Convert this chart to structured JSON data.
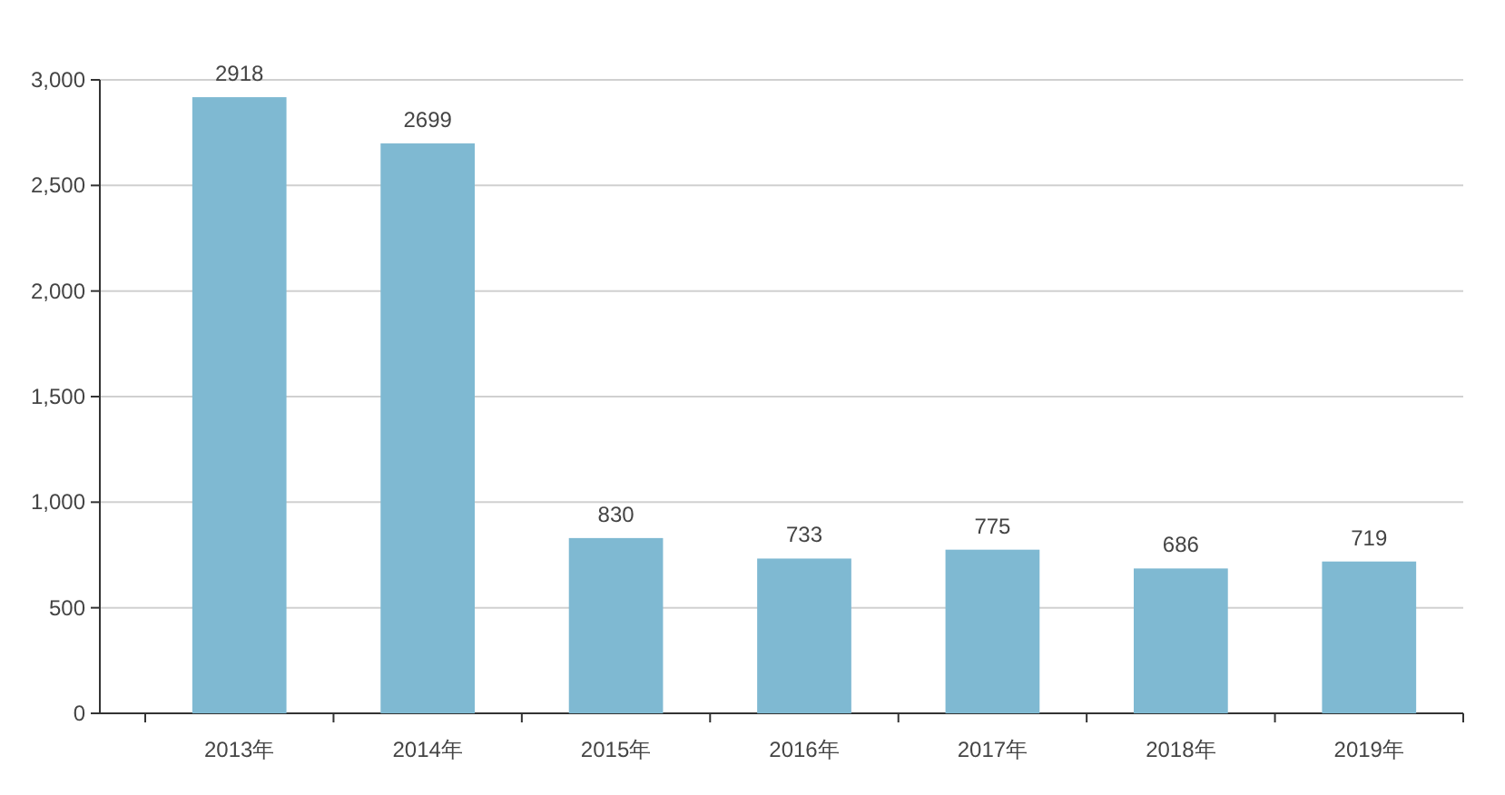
{
  "chart_data": {
    "type": "bar",
    "categories": [
      "2013年",
      "2014年",
      "2015年",
      "2016年",
      "2017年",
      "2018年",
      "2019年"
    ],
    "values": [
      2918,
      2699,
      830,
      733,
      775,
      686,
      719
    ],
    "color": "#7fb9d2",
    "ylim": [
      0,
      3000
    ],
    "yticks": [
      0,
      500,
      {
        "value": 1000,
        "label": "1,000"
      },
      {
        "value": 1500,
        "label": "1,500"
      },
      {
        "value": 2000,
        "label": "2,000"
      },
      {
        "value": 2500,
        "label": "2,500"
      },
      {
        "value": 3000,
        "label": "3,000"
      }
    ],
    "grid": "y",
    "data_labels": true
  }
}
